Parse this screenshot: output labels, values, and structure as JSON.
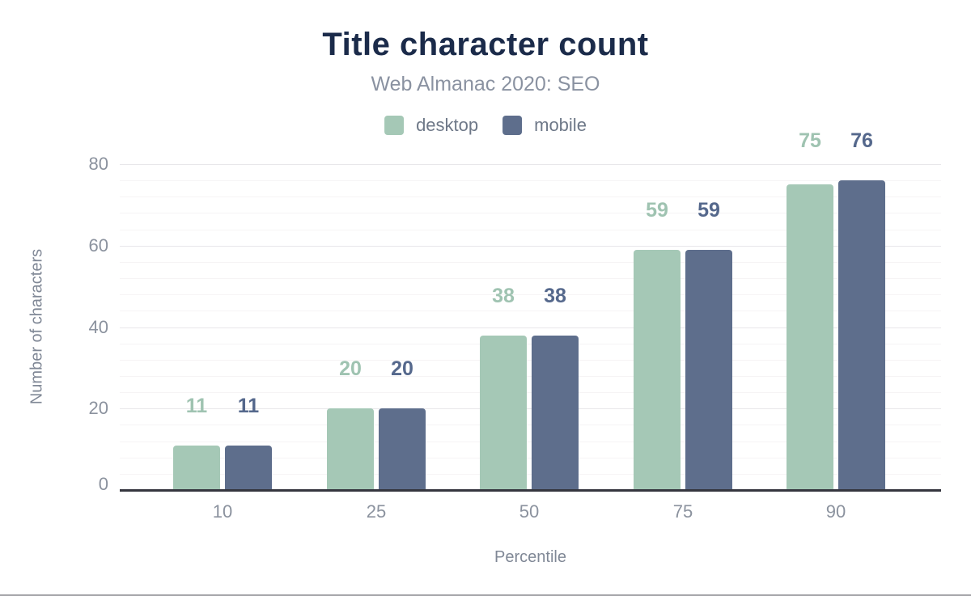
{
  "chart_data": {
    "type": "bar",
    "title": "Title character count",
    "subtitle": "Web Almanac 2020: SEO",
    "xlabel": "Percentile",
    "ylabel": "Number of characters",
    "categories": [
      "10",
      "25",
      "50",
      "75",
      "90"
    ],
    "series": [
      {
        "name": "desktop",
        "color": "#a5c8b6",
        "label_color": "#9fc3b1",
        "values": [
          11,
          20,
          38,
          59,
          75
        ]
      },
      {
        "name": "mobile",
        "color": "#5e6e8c",
        "label_color": "#55688c",
        "values": [
          11,
          20,
          38,
          59,
          76
        ]
      }
    ],
    "ylim": [
      0,
      80
    ],
    "yticks": [
      0,
      20,
      40,
      60,
      80
    ],
    "minor_grid_step": 4,
    "grid": "horizontal-only",
    "legend_position": "top",
    "colors": {
      "title": "#1b2b4a",
      "subtitle": "#8a92a1",
      "axis_title": "#808896",
      "tick_label": "#8b929e",
      "legend_label": "#6e7888",
      "axis_line": "#35363f",
      "major_grid": "#e8e7ea",
      "minor_grid": "#f6f4f5",
      "background": "#ffffff",
      "bottom_divider": "#a8a8ac"
    }
  }
}
